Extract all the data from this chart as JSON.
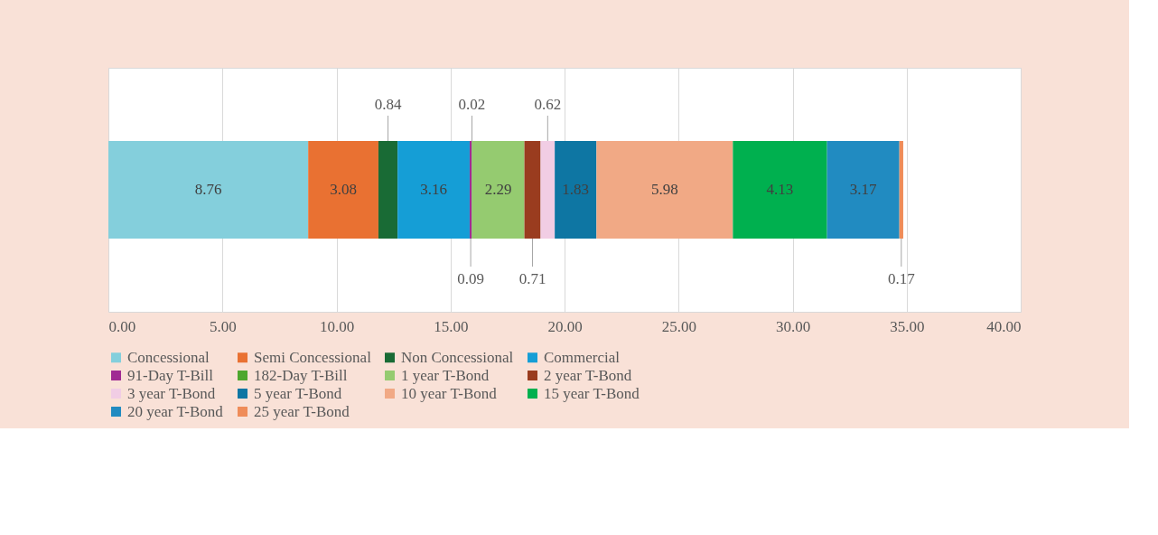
{
  "chart_data": {
    "type": "bar",
    "orientation": "horizontal",
    "stacked": true,
    "categories": [
      null
    ],
    "series": [
      {
        "name": "Concessional",
        "color": "#84cfdc",
        "values": [
          8.76
        ]
      },
      {
        "name": "Semi Concessional",
        "color": "#e97132",
        "values": [
          3.08
        ]
      },
      {
        "name": "Non Concessional",
        "color": "#196b35",
        "values": [
          0.84
        ]
      },
      {
        "name": "Commercial",
        "color": "#159ed6",
        "values": [
          3.16
        ]
      },
      {
        "name": "91-Day T-Bill",
        "color": "#a02b93",
        "values": [
          0.09
        ]
      },
      {
        "name": "182-Day T-Bill",
        "color": "#4ea72e",
        "values": [
          0.02
        ]
      },
      {
        "name": "1 year T-Bond",
        "color": "#95cb70",
        "values": [
          2.29
        ]
      },
      {
        "name": "2 year T-Bond",
        "color": "#9a3c1f",
        "values": [
          0.71
        ]
      },
      {
        "name": "3 year T-Bond",
        "color": "#f1cde4",
        "values": [
          0.62
        ]
      },
      {
        "name": "5 year T-Bond",
        "color": "#0e76a3",
        "values": [
          1.83
        ]
      },
      {
        "name": "10 year T-Bond",
        "color": "#f1a985",
        "values": [
          5.98
        ]
      },
      {
        "name": "15 year T-Bond",
        "color": "#00b04f",
        "values": [
          4.13
        ]
      },
      {
        "name": "20 year T-Bond",
        "color": "#218bc1",
        "values": [
          3.17
        ]
      },
      {
        "name": "25 year T-Bond",
        "color": "#ef8c59",
        "values": [
          0.17
        ]
      }
    ],
    "xlim": [
      0,
      40
    ],
    "xticks": [
      {
        "value": 0,
        "label": "0.00"
      },
      {
        "value": 5,
        "label": "5.00"
      },
      {
        "value": 10,
        "label": "10.00"
      },
      {
        "value": 15,
        "label": "15.00"
      },
      {
        "value": 20,
        "label": "20.00"
      },
      {
        "value": 25,
        "label": "25.00"
      },
      {
        "value": 30,
        "label": "30.00"
      },
      {
        "value": 35,
        "label": "35.00"
      },
      {
        "value": 40,
        "label": "40.00"
      }
    ],
    "grid": "x",
    "legend": "bottom",
    "data_labels": true
  }
}
